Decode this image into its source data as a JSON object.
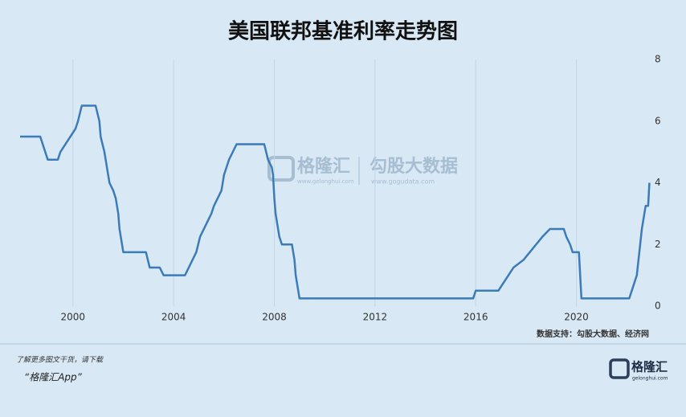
{
  "chart_data": {
    "type": "line",
    "title": "美国联邦基准利率走势图",
    "x": [
      1997.9,
      1998.7,
      1998.8,
      1998.9,
      1999.0,
      1999.4,
      1999.5,
      1999.7,
      1999.9,
      2000.1,
      2000.2,
      2000.35,
      2000.9,
      2001.05,
      2001.1,
      2001.25,
      2001.35,
      2001.45,
      2001.6,
      2001.7,
      2001.8,
      2001.85,
      2001.95,
      2002.0,
      2002.9,
      2003.05,
      2003.45,
      2003.6,
      2004.45,
      2004.6,
      2004.75,
      2004.9,
      2005.05,
      2005.2,
      2005.35,
      2005.5,
      2005.6,
      2005.75,
      2005.9,
      2006.0,
      2006.2,
      2006.35,
      2006.5,
      2007.6,
      2007.75,
      2007.9,
      2007.95,
      2008.0,
      2008.05,
      2008.2,
      2008.3,
      2008.7,
      2008.8,
      2008.85,
      2008.95,
      2009.0,
      2015.9,
      2016.0,
      2016.9,
      2017.1,
      2017.3,
      2017.5,
      2017.9,
      2018.15,
      2018.4,
      2018.65,
      2018.95,
      2019.5,
      2019.6,
      2019.75,
      2019.85,
      2020.1,
      2020.15,
      2020.2,
      2022.1,
      2022.2,
      2022.4,
      2022.5,
      2022.6,
      2022.75,
      2022.85,
      2022.9
    ],
    "values": [
      5.5,
      5.5,
      5.25,
      5.0,
      4.75,
      4.75,
      5.0,
      5.25,
      5.5,
      5.75,
      6.0,
      6.5,
      6.5,
      6.0,
      5.5,
      5.0,
      4.5,
      4.0,
      3.75,
      3.5,
      3.0,
      2.5,
      2.0,
      1.75,
      1.75,
      1.25,
      1.25,
      1.0,
      1.0,
      1.25,
      1.5,
      1.75,
      2.25,
      2.5,
      2.75,
      3.0,
      3.25,
      3.5,
      3.75,
      4.25,
      4.75,
      5.0,
      5.25,
      5.25,
      4.75,
      4.5,
      4.25,
      3.5,
      3.0,
      2.25,
      2.0,
      2.0,
      1.5,
      1.0,
      0.5,
      0.25,
      0.25,
      0.5,
      0.5,
      0.75,
      1.0,
      1.25,
      1.5,
      1.75,
      2.0,
      2.25,
      2.5,
      2.5,
      2.25,
      2.0,
      1.75,
      1.75,
      1.0,
      0.25,
      0.25,
      0.5,
      1.0,
      1.75,
      2.5,
      3.25,
      3.25,
      4.0
    ],
    "color": "#3b7bba",
    "xlim": [
      1997.9,
      2022.95
    ],
    "xticks": [
      2000,
      2004,
      2008,
      2012,
      2016,
      2020
    ],
    "ylim": [
      0,
      8
    ],
    "yticks": [
      0,
      2,
      4,
      6,
      8
    ],
    "grid": "x",
    "source": "数据支持：勾股大数据、经济网"
  },
  "watermark": {
    "brand": "格隆汇",
    "brand_url": "www.gelonghui.com",
    "partner": "勾股大数据",
    "partner_url": "www.gogudata.com"
  },
  "footer": {
    "line1": "了解更多图文干货，请下载",
    "line2": "“格隆汇App”",
    "logo": "格隆汇",
    "logo_url": "gelonghui.com"
  }
}
